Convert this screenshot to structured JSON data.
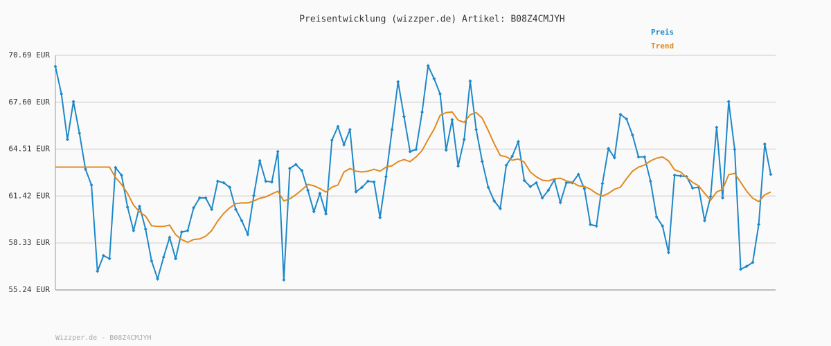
{
  "chart_data": {
    "type": "line",
    "title": "Preisentwicklung (wizzper.de) Artikel: B08Z4CMJYH",
    "footer": "Wizzper.de - B08Z4CMJYH",
    "ylim": [
      55.24,
      70.69
    ],
    "yticks": [
      {
        "value": 55.24,
        "label": "55.24 EUR"
      },
      {
        "value": 58.33,
        "label": "58.33 EUR"
      },
      {
        "value": 61.42,
        "label": "61.42 EUR"
      },
      {
        "value": 64.51,
        "label": "64.51 EUR"
      },
      {
        "value": 67.6,
        "label": "67.60 EUR"
      },
      {
        "value": 70.69,
        "label": "70.69 EUR"
      }
    ],
    "grid": true,
    "legend": "top-right",
    "series": [
      {
        "name": "Preis",
        "color": "#1e88c7",
        "markers": true,
        "values": [
          69.96,
          68.15,
          65.15,
          67.65,
          65.56,
          63.2,
          62.15,
          56.47,
          57.5,
          57.3,
          63.3,
          62.8,
          60.7,
          59.15,
          60.75,
          59.25,
          57.15,
          55.97,
          57.4,
          58.7,
          57.3,
          59.05,
          59.15,
          60.65,
          61.3,
          61.3,
          60.55,
          62.4,
          62.3,
          62.0,
          60.55,
          59.8,
          58.9,
          61.45,
          63.75,
          62.4,
          62.35,
          64.35,
          55.9,
          63.25,
          63.5,
          63.1,
          61.8,
          60.4,
          61.6,
          60.25,
          65.1,
          66.0,
          64.8,
          65.8,
          61.7,
          62.0,
          62.4,
          62.35,
          60.0,
          62.7,
          65.8,
          68.95,
          66.65,
          64.35,
          64.5,
          66.95,
          70.0,
          69.15,
          68.15,
          64.45,
          66.45,
          63.4,
          65.15,
          69.0,
          65.8,
          63.7,
          62.0,
          61.1,
          60.6,
          63.45,
          64.05,
          65.0,
          62.45,
          62.05,
          62.3,
          61.3,
          61.8,
          62.5,
          61.0,
          62.3,
          62.3,
          62.85,
          61.9,
          59.55,
          59.45,
          62.25,
          64.55,
          63.95,
          66.8,
          66.5,
          65.45,
          64.0,
          64.0,
          62.4,
          60.05,
          59.45,
          57.7,
          62.8,
          62.75,
          62.7,
          61.95,
          62.0,
          59.8,
          61.4,
          65.95,
          61.3,
          67.65,
          64.5,
          56.6,
          56.8,
          57.05,
          59.55,
          64.85,
          62.85
        ]
      },
      {
        "name": "Trend",
        "color": "#e08a1e",
        "markers": false,
        "values": [
          63.33,
          63.33,
          63.33,
          63.33,
          63.33,
          63.33,
          63.33,
          63.33,
          63.33,
          63.33,
          62.65,
          62.19,
          61.6,
          60.83,
          60.38,
          60.1,
          59.47,
          59.42,
          59.42,
          59.51,
          58.88,
          58.56,
          58.38,
          58.56,
          58.6,
          58.78,
          59.15,
          59.78,
          60.28,
          60.65,
          60.92,
          60.97,
          60.97,
          61.1,
          61.28,
          61.37,
          61.56,
          61.74,
          61.1,
          61.24,
          61.51,
          61.83,
          62.19,
          62.1,
          61.92,
          61.69,
          62.01,
          62.15,
          63.01,
          63.24,
          63.06,
          63.01,
          63.06,
          63.19,
          63.06,
          63.33,
          63.42,
          63.69,
          63.83,
          63.69,
          64.0,
          64.42,
          65.15,
          65.83,
          66.74,
          66.92,
          66.96,
          66.42,
          66.28,
          66.78,
          66.92,
          66.56,
          65.74,
          64.87,
          64.1,
          64.01,
          63.78,
          63.87,
          63.65,
          63.01,
          62.69,
          62.47,
          62.42,
          62.56,
          62.6,
          62.42,
          62.33,
          62.1,
          62.06,
          61.87,
          61.6,
          61.42,
          61.6,
          61.87,
          62.01,
          62.56,
          63.06,
          63.33,
          63.47,
          63.74,
          63.92,
          64.0,
          63.74,
          63.15,
          63.01,
          62.65,
          62.33,
          62.1,
          61.6,
          61.15,
          61.69,
          61.87,
          62.83,
          62.92,
          62.33,
          61.74,
          61.28,
          61.06,
          61.51,
          61.69
        ]
      }
    ]
  }
}
